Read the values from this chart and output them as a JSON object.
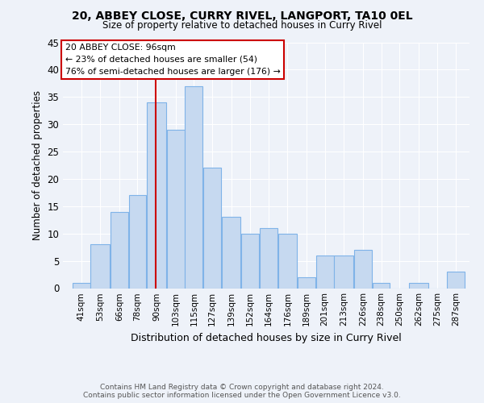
{
  "title": "20, ABBEY CLOSE, CURRY RIVEL, LANGPORT, TA10 0EL",
  "subtitle": "Size of property relative to detached houses in Curry Rivel",
  "xlabel": "Distribution of detached houses by size in Curry Rivel",
  "ylabel": "Number of detached properties",
  "bar_labels": [
    "41sqm",
    "53sqm",
    "66sqm",
    "78sqm",
    "90sqm",
    "103sqm",
    "115sqm",
    "127sqm",
    "139sqm",
    "152sqm",
    "164sqm",
    "176sqm",
    "189sqm",
    "201sqm",
    "213sqm",
    "226sqm",
    "238sqm",
    "250sqm",
    "262sqm",
    "275sqm",
    "287sqm"
  ],
  "bar_values": [
    1,
    8,
    14,
    17,
    34,
    29,
    37,
    22,
    13,
    10,
    11,
    10,
    2,
    6,
    6,
    7,
    1,
    0,
    1,
    0,
    3
  ],
  "bar_color": "#c6d9f0",
  "bar_edge_color": "#7fb3e8",
  "bin_edges_left": [
    41,
    53,
    66,
    78,
    90,
    103,
    115,
    127,
    139,
    152,
    164,
    176,
    189,
    201,
    213,
    226,
    238,
    250,
    262,
    275,
    287
  ],
  "bin_edges_right": [
    53,
    66,
    78,
    90,
    103,
    115,
    127,
    139,
    152,
    164,
    176,
    189,
    201,
    213,
    226,
    238,
    250,
    262,
    275,
    287,
    299
  ],
  "property_line_x": 96,
  "property_line_label": "20 ABBEY CLOSE: 96sqm",
  "annotation_line1": "← 23% of detached houses are smaller (54)",
  "annotation_line2": "76% of semi-detached houses are larger (176) →",
  "ylim": [
    0,
    45
  ],
  "yticks": [
    0,
    5,
    10,
    15,
    20,
    25,
    30,
    35,
    40,
    45
  ],
  "xlim_left": 35,
  "xlim_right": 302,
  "vline_color": "#cc0000",
  "footer1": "Contains HM Land Registry data © Crown copyright and database right 2024.",
  "footer2": "Contains public sector information licensed under the Open Government Licence v3.0.",
  "bg_color": "#eef2f9",
  "grid_color": "#ffffff"
}
